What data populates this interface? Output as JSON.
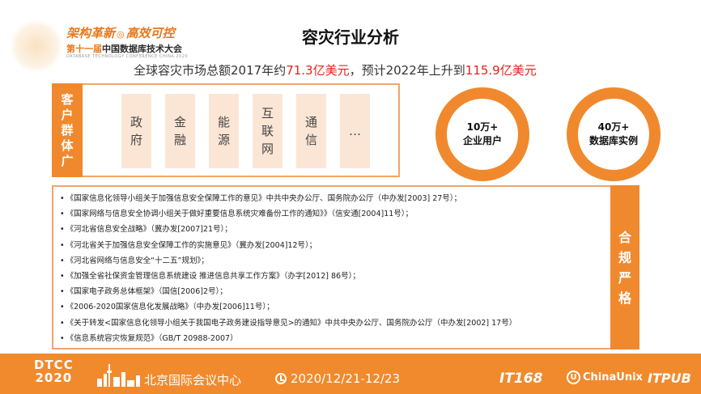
{
  "header": {
    "slogan_left": "架构革新",
    "slogan_right": "高效可控",
    "conference_prefix": "第十一届",
    "conference_name": "中国数据库技术大会",
    "conference_en": "DATABASE TECHNOLOGY CONFERENCE CHINA 2020"
  },
  "title": "容灾行业分析",
  "market": {
    "prefix": "全球容灾市场总额2017年约",
    "value_2017": "71.3亿美元",
    "middle": "，预计2022年上升到",
    "value_2022": "115.9亿美元"
  },
  "customers": {
    "label": [
      "客",
      "户",
      "群",
      "体",
      "广"
    ],
    "industries": [
      [
        "政",
        "府"
      ],
      [
        "金",
        "融"
      ],
      [
        "能",
        "源"
      ],
      [
        "互",
        "联",
        "网"
      ],
      [
        "通",
        "信"
      ],
      [
        "…"
      ]
    ]
  },
  "stats": [
    {
      "value": "10万+",
      "label": "企业用户"
    },
    {
      "value": "40万+",
      "label": "数据库实例"
    }
  ],
  "compliance": {
    "label": [
      "合",
      "规",
      "严",
      "格"
    ],
    "policies": [
      "《国家信息化领导小组关于加强信息安全保障工作的意见》中共中央办公厅、国务院办公厅（中办发[2003] 27号）；",
      "《国家网络与信息安全协调小组关于做好重要信息系统灾难备份工作的通知》》（信安通[2004]11号）；",
      "《河北省信息安全战略》（冀办发[2007]21号）；",
      "《河北省关于加强信息安全保障工作的实施意见》（冀办发[2004]12号）；",
      "《河北省网络与信息安全“十二五”规划》；",
      "《加强全省社保资金管理信息系统建设  推进信息共享工作方案》（办字[2012] 86号）；",
      "《国家电子政务总体框架》（国信[2006]2号）；",
      "《2006-2020国家信息化发展战略》（中办发[2006]11号）；",
      "《关于转发<国家信息化领导小组关于我国电子政务建设指导意见>的通知》中共中央办公厅、国务院办公厅（中办发[2002] 17号）",
      "《信息系统容灾恢复规范》（GB/T 20988-2007）"
    ]
  },
  "footer": {
    "event_line1": "DTCC",
    "event_line2": "2020",
    "venue": "北京国际会议中心",
    "dates": "2020/12/21-12/23",
    "sponsors": [
      "IT168",
      "ChinaUnix",
      "ITPUB"
    ]
  },
  "colors": {
    "accent": "#f0892d",
    "highlight_red": "#e8201a",
    "industry_bg": "#fbe6d6"
  }
}
